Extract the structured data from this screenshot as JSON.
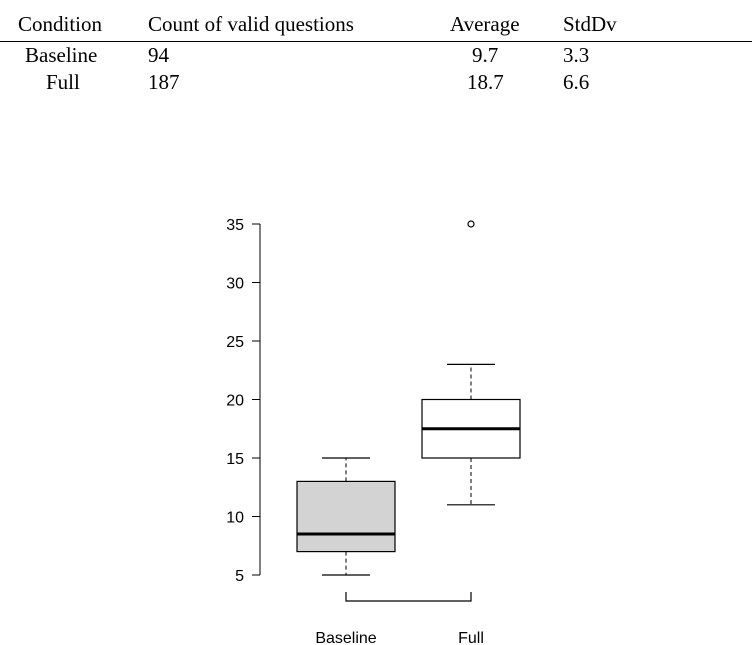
{
  "table": {
    "headers": [
      "Condition",
      "Count of valid questions",
      "Average",
      "StdDv"
    ],
    "rows": [
      [
        "Baseline",
        "94",
        "9.7",
        "3.3"
      ],
      [
        "Full",
        "187",
        "18.7",
        "6.6"
      ]
    ]
  },
  "chart_data": {
    "type": "boxplot",
    "categories": [
      "Baseline",
      "Full"
    ],
    "series": [
      {
        "name": "Baseline",
        "whisker_low": 5,
        "q1": 7,
        "median": 8.5,
        "q3": 13,
        "whisker_high": 15,
        "outliers": [],
        "fill": "#d3d3d3"
      },
      {
        "name": "Full",
        "whisker_low": 11,
        "q1": 15,
        "median": 17.5,
        "q3": 20,
        "whisker_high": 23,
        "outliers": [
          35
        ],
        "fill": "#ffffff"
      }
    ],
    "yticks": [
      5,
      10,
      15,
      20,
      25,
      30,
      35
    ],
    "ylim": [
      5,
      35
    ],
    "title": "",
    "xlabel": "",
    "ylabel": "",
    "grid": false
  }
}
